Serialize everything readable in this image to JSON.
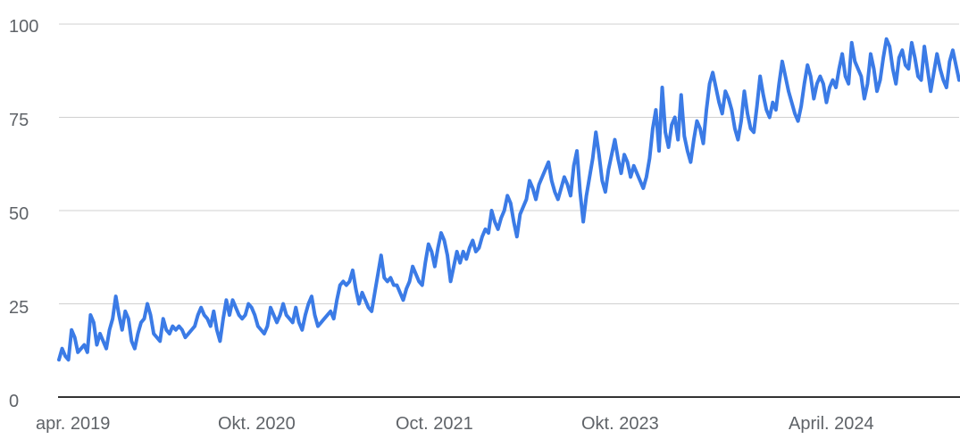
{
  "chart_data": {
    "type": "line",
    "title": "",
    "xlabel": "",
    "ylabel": "",
    "ylim": [
      0,
      100
    ],
    "y_ticks": [
      "0",
      "25",
      "50",
      "75",
      "100"
    ],
    "x_tick_labels": [
      "apr. 2019",
      "Okt. 2020",
      "Oct. 2021",
      "Okt. 2023",
      "April. 2024"
    ],
    "grid": true,
    "legend": "none",
    "colors": {
      "series": "#3b7be6",
      "grid": "#d0d0d0",
      "baseline": "#333333",
      "text": "#5f6368"
    },
    "series": [
      {
        "values": [
          10,
          13,
          11,
          10,
          18,
          16,
          12,
          13,
          14,
          12,
          22,
          20,
          14,
          17,
          15,
          13,
          18,
          21,
          27,
          22,
          18,
          23,
          21,
          15,
          13,
          17,
          20,
          21,
          25,
          22,
          17,
          16,
          15,
          21,
          18,
          17,
          19,
          18,
          19,
          18,
          16,
          17,
          18,
          19,
          22,
          24,
          22,
          21,
          19,
          23,
          18,
          15,
          21,
          26,
          22,
          26,
          24,
          22,
          21,
          22,
          25,
          24,
          22,
          19,
          18,
          17,
          19,
          24,
          22,
          20,
          22,
          25,
          22,
          21,
          20,
          24,
          20,
          18,
          22,
          25,
          27,
          22,
          19,
          20,
          21,
          22,
          23,
          21,
          26,
          30,
          31,
          30,
          31,
          34,
          29,
          25,
          28,
          26,
          24,
          23,
          28,
          33,
          38,
          32,
          31,
          32,
          30,
          30,
          28,
          26,
          29,
          31,
          35,
          33,
          31,
          30,
          36,
          41,
          39,
          35,
          40,
          44,
          42,
          38,
          31,
          35,
          39,
          36,
          39,
          37,
          40,
          42,
          39,
          40,
          43,
          45,
          44,
          50,
          47,
          45,
          48,
          50,
          54,
          52,
          47,
          43,
          49,
          51,
          53,
          58,
          56,
          53,
          57,
          59,
          61,
          63,
          58,
          55,
          53,
          56,
          59,
          57,
          54,
          62,
          66,
          55,
          47,
          54,
          59,
          64,
          71,
          65,
          58,
          55,
          61,
          65,
          69,
          64,
          60,
          65,
          63,
          59,
          62,
          60,
          58,
          56,
          59,
          64,
          72,
          77,
          66,
          83,
          71,
          67,
          73,
          75,
          69,
          81,
          70,
          66,
          63,
          69,
          74,
          72,
          68,
          77,
          84,
          87,
          83,
          79,
          76,
          82,
          80,
          77,
          72,
          69,
          74,
          82,
          76,
          72,
          71,
          78,
          86,
          81,
          77,
          75,
          79,
          77,
          84,
          90,
          86,
          82,
          79,
          76,
          74,
          78,
          84,
          89,
          86,
          80,
          84,
          86,
          84,
          79,
          83,
          85,
          83,
          88,
          92,
          86,
          84,
          95,
          90,
          88,
          86,
          80,
          84,
          92,
          88,
          82,
          85,
          91,
          96,
          94,
          88,
          84,
          91,
          93,
          89,
          88,
          95,
          91,
          86,
          85,
          94,
          88,
          82,
          87,
          92,
          88,
          85,
          83,
          90,
          93,
          89,
          85
        ]
      }
    ]
  }
}
